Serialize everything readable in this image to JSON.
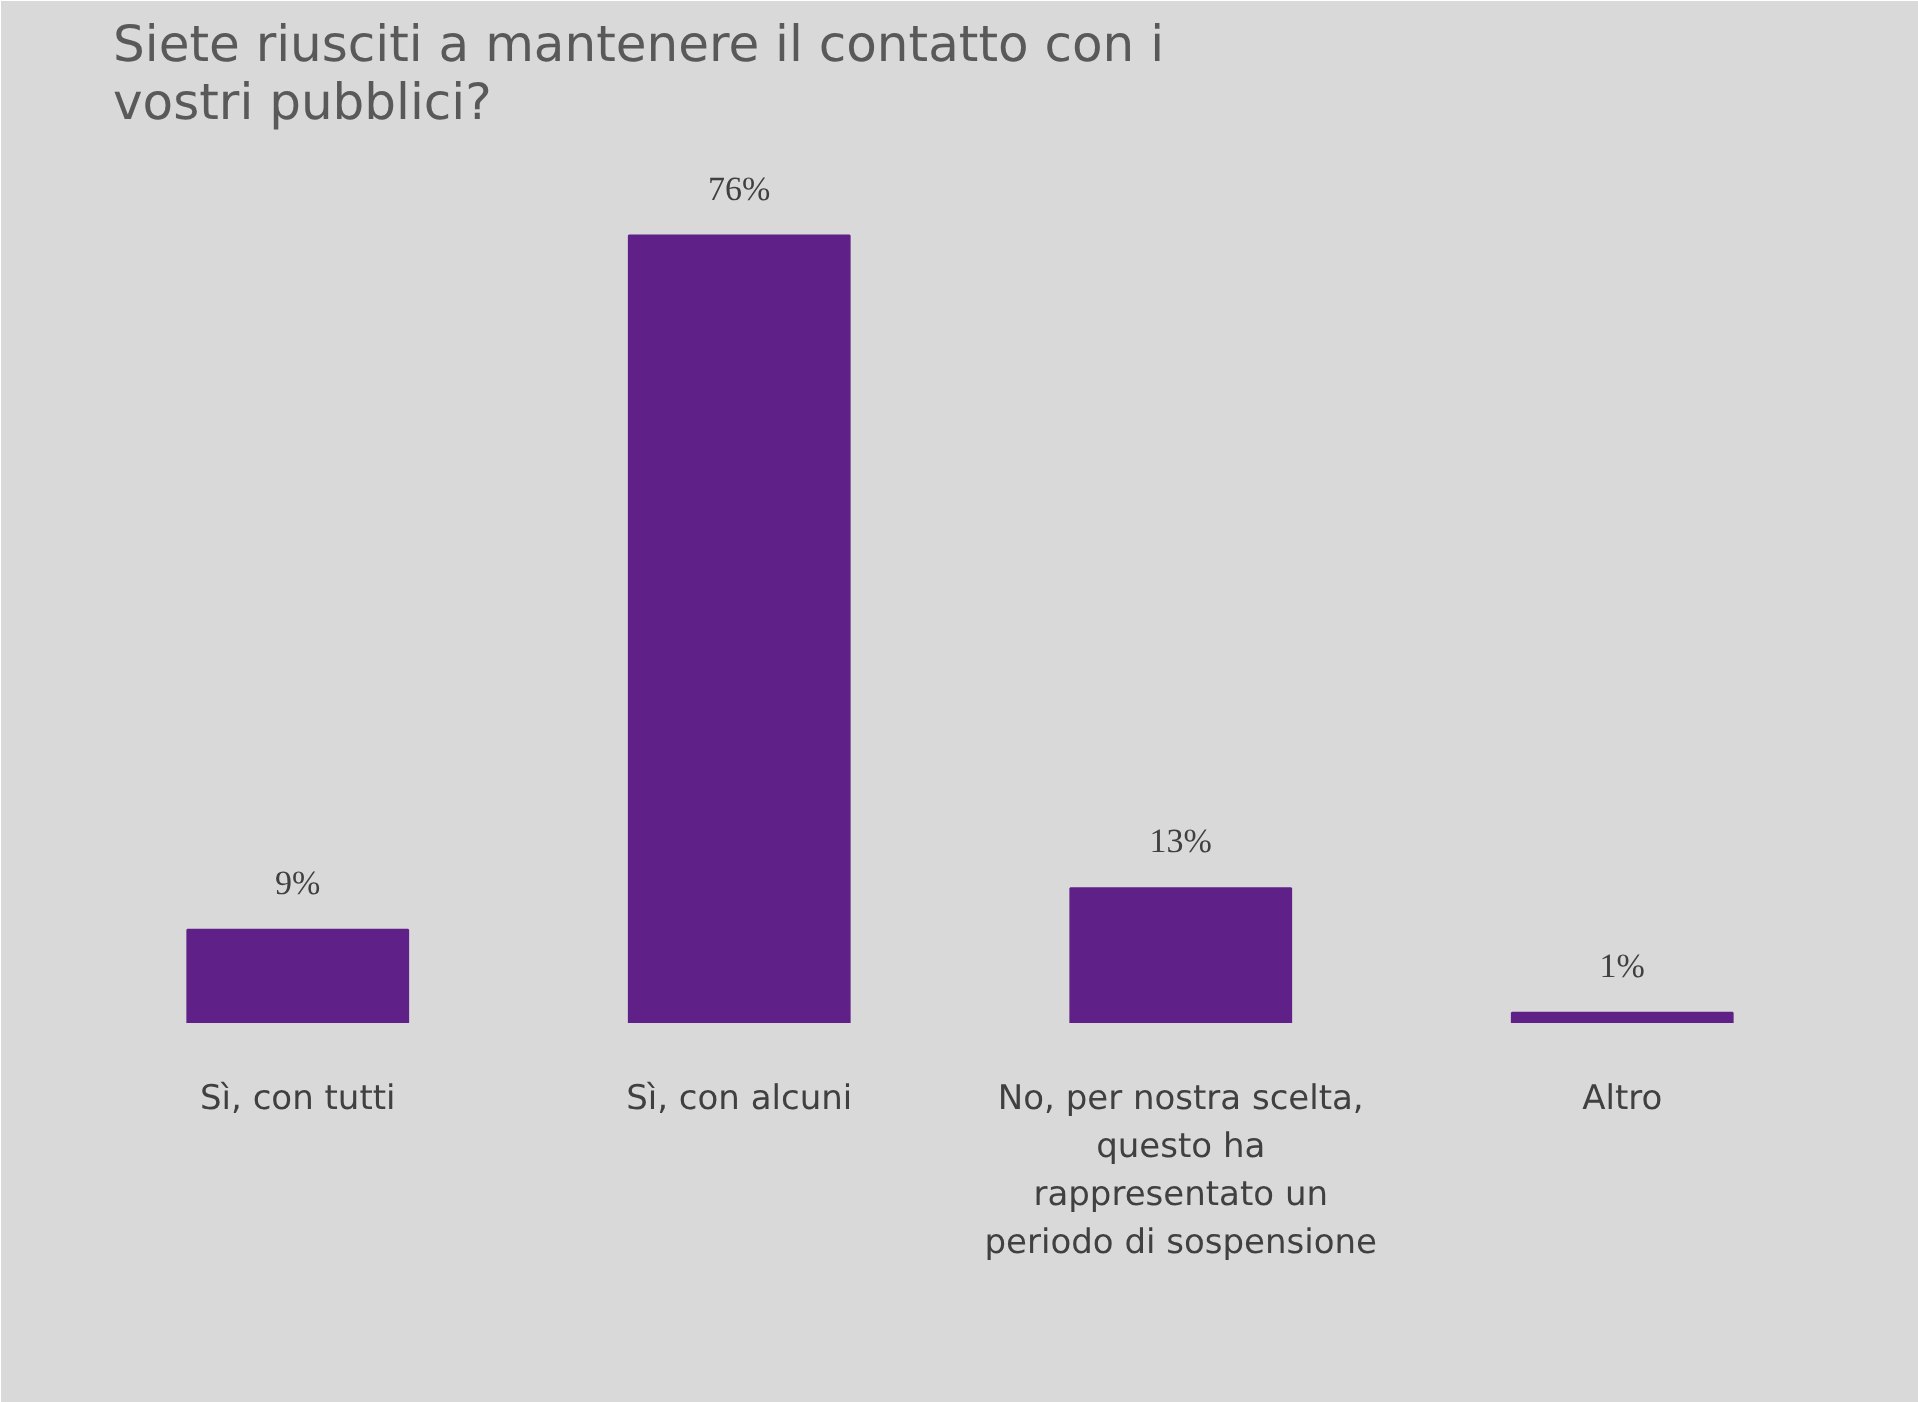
{
  "chart_data": {
    "type": "bar",
    "title": "Siete riusciti a mantenere il contatto con i vostri pubblici?",
    "categories": [
      "Sì, con tutti",
      "Sì, con alcuni",
      "No, per nostra scelta, questo ha rappresentato un periodo di sospensione",
      "Altro"
    ],
    "values": [
      9,
      76,
      13,
      1
    ],
    "value_labels": [
      "9%",
      "76%",
      "13%",
      "1%"
    ],
    "color": "#5f2187",
    "grid": false
  }
}
